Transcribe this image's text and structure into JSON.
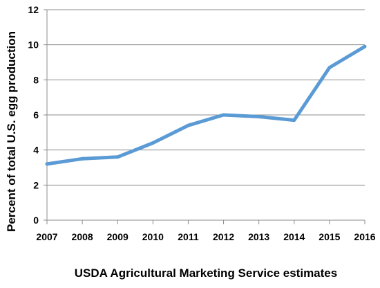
{
  "chart_data": {
    "type": "line",
    "title": "",
    "xlabel": "USDA Agricultural Marketing Service estimates",
    "ylabel": "Percent of total U.S. egg production",
    "x": [
      "2007",
      "2008",
      "2009",
      "2010",
      "2011",
      "2012",
      "2013",
      "2014",
      "2015",
      "2016"
    ],
    "ylim": [
      0,
      12
    ],
    "yticks": [
      "0",
      "2",
      "4",
      "6",
      "8",
      "10",
      "12"
    ],
    "grid": true,
    "legend": "none",
    "series": [
      {
        "values": [
          3.2,
          3.5,
          3.6,
          4.4,
          5.4,
          6.0,
          5.9,
          5.7,
          8.7,
          9.9
        ],
        "color": "#5b9bd5"
      }
    ]
  }
}
